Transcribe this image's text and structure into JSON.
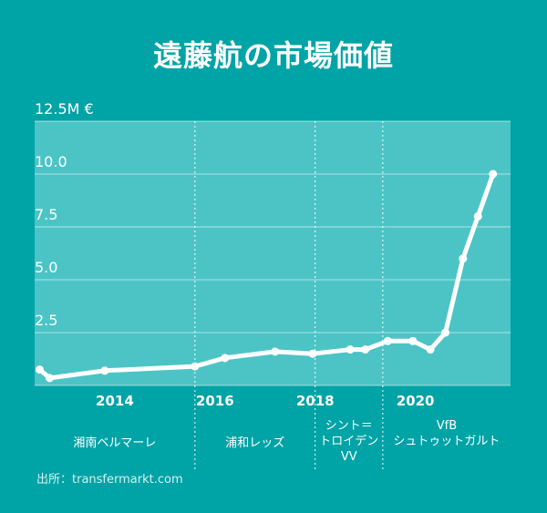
{
  "title": "遠藤航の市場価値",
  "source": "出所：transfermarkt.com",
  "colors": {
    "background": "#00a3a6",
    "plot_area": "#4cc4c6",
    "line": "#ffffff"
  },
  "chart_data": {
    "type": "line",
    "title": "遠藤航の市場価値",
    "ylabel": "",
    "xlabel": "",
    "ylim": [
      0,
      12.5
    ],
    "xlim": [
      2012.4,
      2021.9
    ],
    "y_ticks": [
      {
        "value": 12.5,
        "label": "12.5M €"
      },
      {
        "value": 10,
        "label": "10.0"
      },
      {
        "value": 7.5,
        "label": "7.5"
      },
      {
        "value": 5,
        "label": "5.0"
      },
      {
        "value": 2.5,
        "label": "2.5"
      }
    ],
    "x_ticks": [
      {
        "value": 2014,
        "label": "2014"
      },
      {
        "value": 2016,
        "label": "2016"
      },
      {
        "value": 2018,
        "label": "2018"
      },
      {
        "value": 2020,
        "label": "2020"
      }
    ],
    "club_periods": [
      {
        "start": 2012.4,
        "end": 2015.6,
        "label": [
          "湘南ベルマーレ"
        ]
      },
      {
        "start": 2015.6,
        "end": 2018.0,
        "label": [
          "浦和レッズ"
        ]
      },
      {
        "start": 2018.0,
        "end": 2019.35,
        "label": [
          "シント＝",
          "トロイデン",
          "VV"
        ]
      },
      {
        "start": 2019.35,
        "end": 2021.9,
        "label": [
          "VfB",
          "シュトゥットガルト"
        ]
      }
    ],
    "grid": true,
    "series": [
      {
        "x": [
          2012.5,
          2012.7,
          2013.8,
          2015.6,
          2016.2,
          2017.2,
          2017.95,
          2018.7,
          2019.0,
          2019.45,
          2019.95,
          2020.3,
          2020.6,
          2020.95,
          2021.25,
          2021.55
        ],
        "y": [
          0.75,
          0.35,
          0.7,
          0.9,
          1.3,
          1.6,
          1.5,
          1.7,
          1.7,
          2.1,
          2.1,
          1.7,
          2.5,
          6.0,
          8.0,
          10.0
        ]
      }
    ]
  }
}
